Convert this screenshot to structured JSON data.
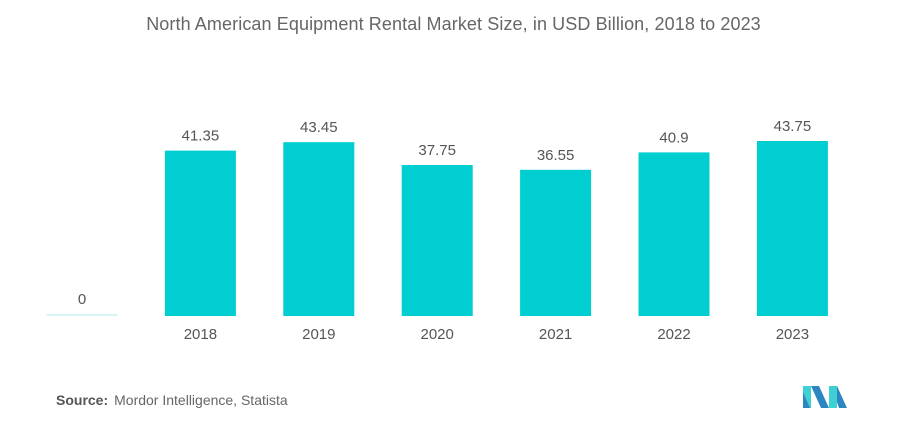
{
  "chart_data": {
    "type": "bar",
    "title": "North American Equipment Rental Market Size, in USD Billion, 2018 to 2023",
    "categories": [
      "",
      "2018",
      "2019",
      "2020",
      "2021",
      "2022",
      "2023"
    ],
    "values": [
      0,
      41.35,
      43.45,
      37.75,
      36.55,
      40.9,
      43.75
    ],
    "value_labels": [
      "0",
      "41.35",
      "43.45",
      "37.75",
      "36.55",
      "40.9",
      "43.75"
    ],
    "xlabel": "",
    "ylabel": "",
    "ylim": [
      0,
      50
    ],
    "grid": false,
    "legend": "none",
    "bar_color": "#00CED1",
    "zero_bar_color": "#D6F5F6"
  },
  "source": {
    "label": "Source:",
    "text": "Mordor Intelligence, Statista"
  },
  "logo": {
    "icon": "mordor-intelligence-logo-icon",
    "colors": [
      "#2E86C1",
      "#3FD0D4"
    ]
  }
}
